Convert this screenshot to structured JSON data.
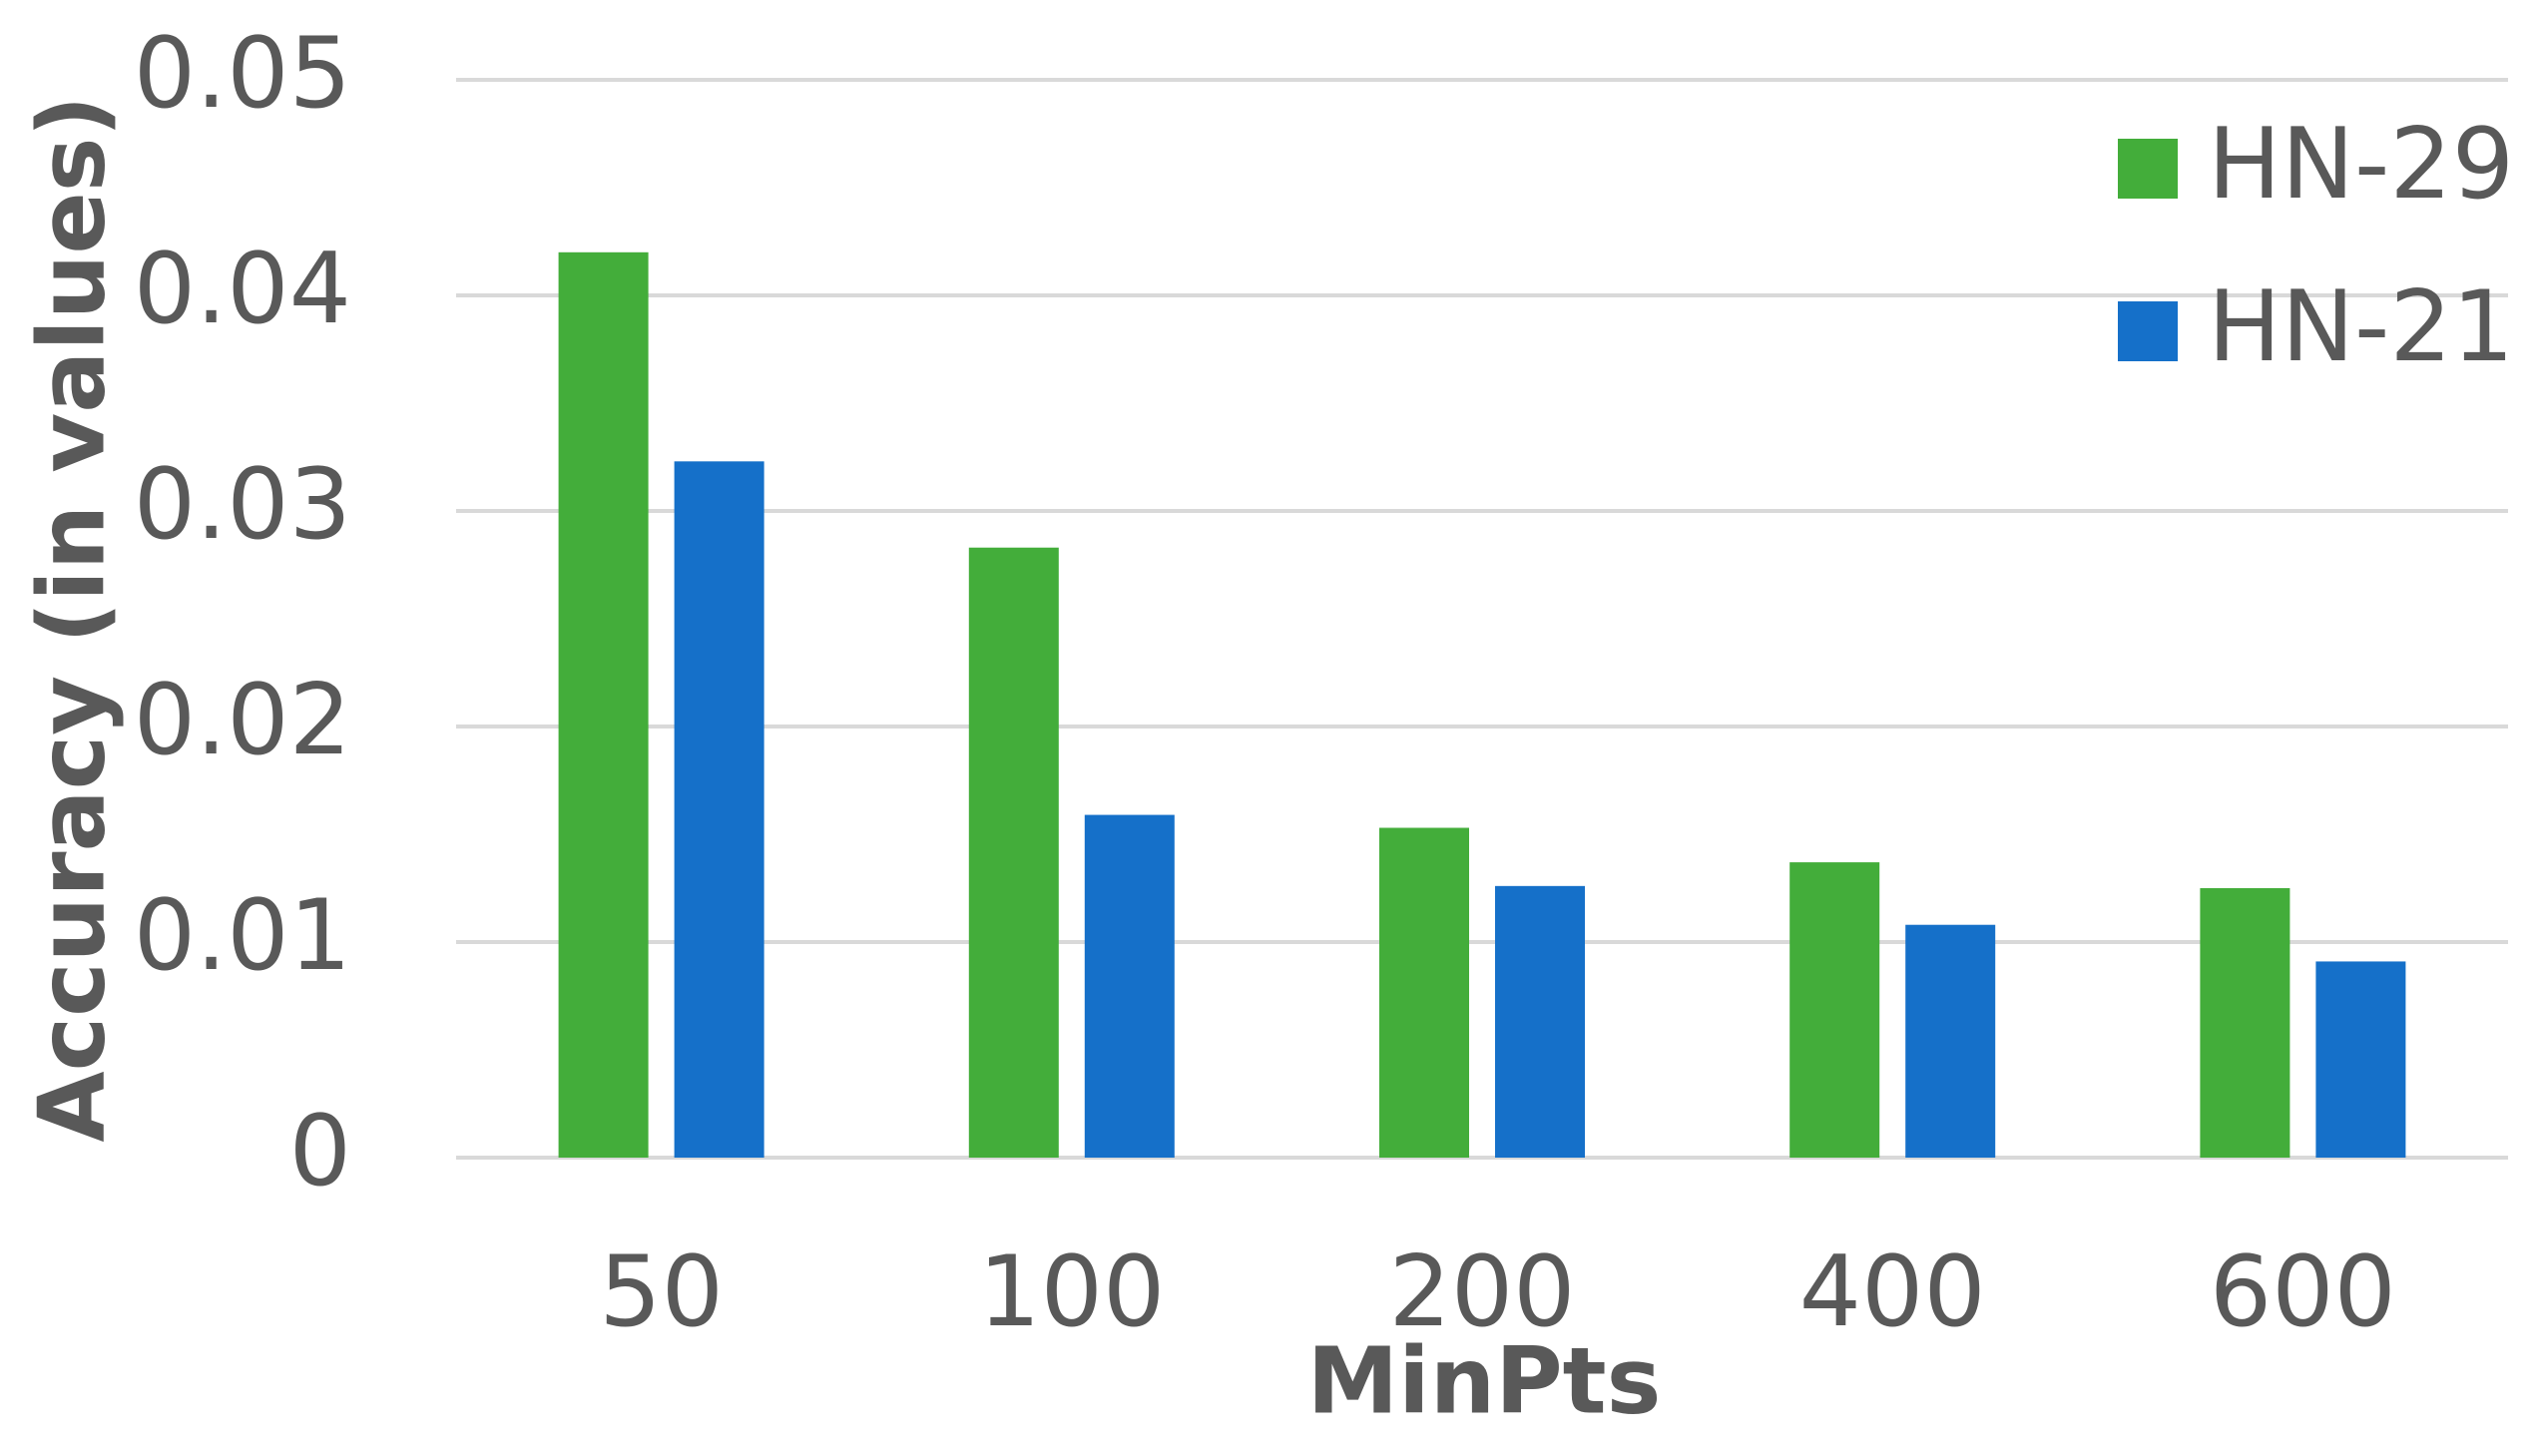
{
  "chart_data": {
    "type": "bar",
    "x_label": "MinPts",
    "y_label": "Accuracy (in values)",
    "categories": [
      "50",
      "100",
      "200",
      "400",
      "600"
    ],
    "series": [
      {
        "name": "HN-29",
        "color": "#43ad3a",
        "values": [
          0.042,
          0.0283,
          0.0153,
          0.0137,
          0.0125
        ]
      },
      {
        "name": "HN-21",
        "color": "#1570c9",
        "values": [
          0.0323,
          0.0159,
          0.0126,
          0.0108,
          0.0091
        ]
      }
    ],
    "ylim": [
      0,
      0.05
    ],
    "yticks": [
      0,
      0.01,
      0.02,
      0.03,
      0.04,
      0.05
    ],
    "grid": true,
    "legend": "top-right"
  }
}
